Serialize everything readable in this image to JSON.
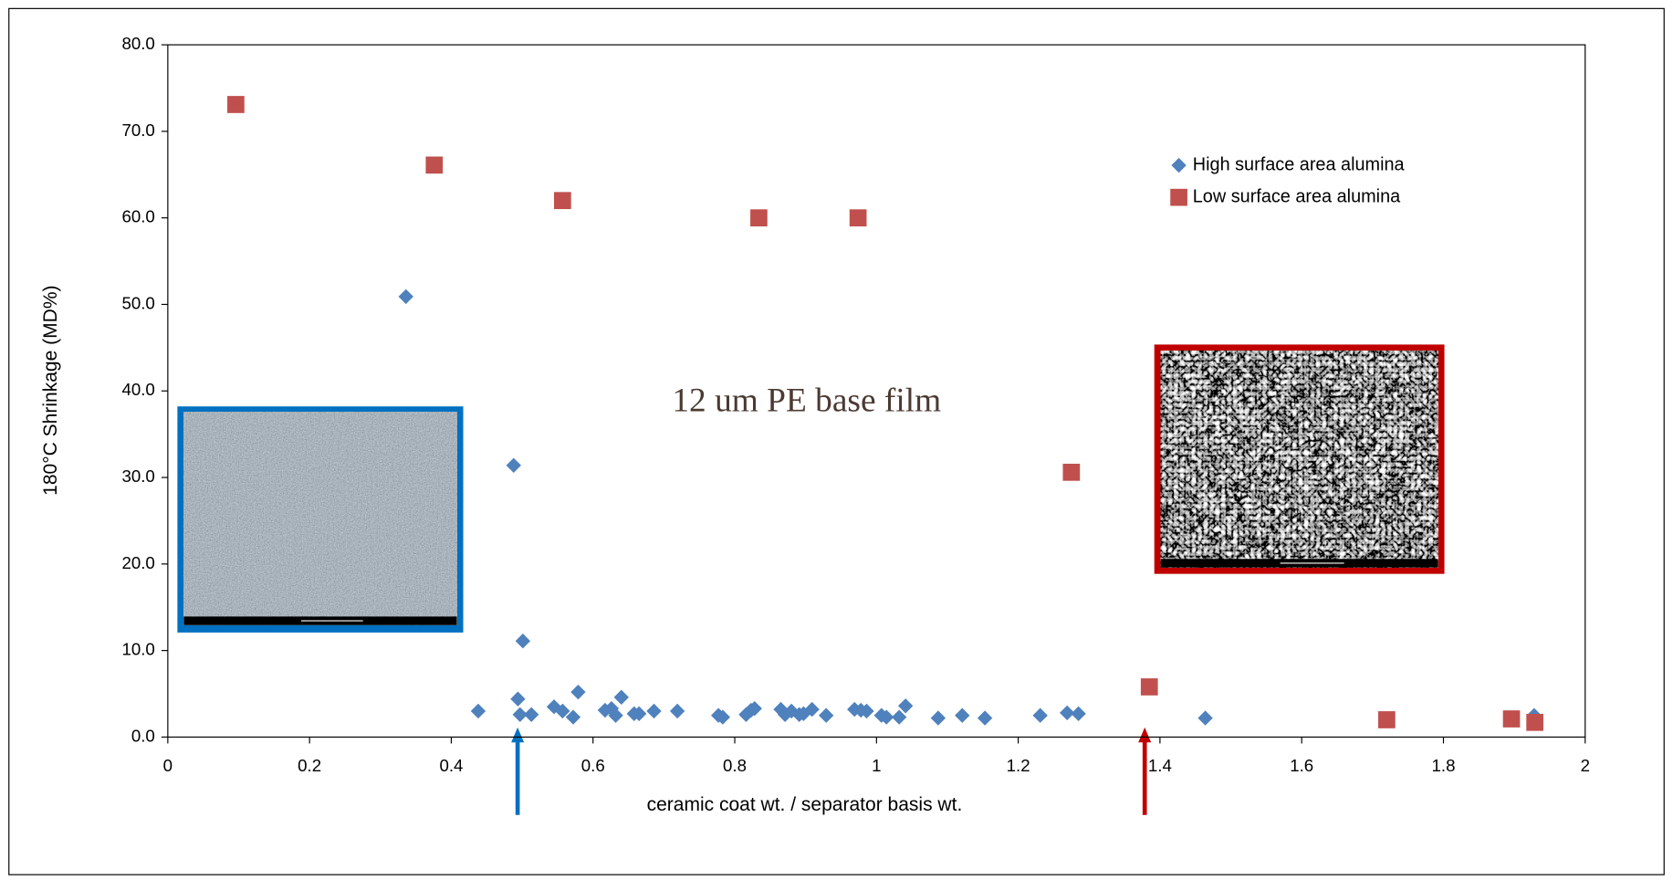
{
  "chart_data": {
    "type": "scatter",
    "x_label": "ceramic coat wt. / separator basis wt.",
    "y_label": "180°C Shrinkage (MD%)",
    "annotation": "12 um PE base film",
    "xlim": [
      0,
      2
    ],
    "xticks": [
      0,
      0.2,
      0.4,
      0.6,
      0.8,
      1,
      1.2,
      1.4,
      1.6,
      1.8,
      2
    ],
    "ylim": [
      0,
      80
    ],
    "yticks": [
      {
        "value": 0,
        "label": "0.0"
      },
      {
        "value": 10,
        "label": "10.0"
      },
      {
        "value": 20,
        "label": "20.0"
      },
      {
        "value": 30,
        "label": "30.0"
      },
      {
        "value": 40,
        "label": "40.0"
      },
      {
        "value": 50,
        "label": "50.0"
      },
      {
        "value": 60,
        "label": "60.0"
      },
      {
        "value": 70,
        "label": "70.0"
      },
      {
        "value": 80,
        "label": "80.0"
      }
    ],
    "legend": "upper right",
    "series": [
      {
        "name": "High surface area alumina",
        "color": "#4f81bd",
        "marker": "diamond",
        "x": [
          0.336,
          0.488,
          0.501,
          0.438,
          0.494,
          0.497,
          0.513,
          0.545,
          0.557,
          0.572,
          0.579,
          0.617,
          0.626,
          0.632,
          0.64,
          0.658,
          0.665,
          0.686,
          0.719,
          0.777,
          0.783,
          0.816,
          0.823,
          0.828,
          0.865,
          0.871,
          0.88,
          0.891,
          0.897,
          0.909,
          0.929,
          0.969,
          0.978,
          0.986,
          1.007,
          1.014,
          1.032,
          1.041,
          1.087,
          1.121,
          1.153,
          1.231,
          1.269,
          1.285,
          1.464,
          1.928
        ],
        "values": [
          50.9,
          31.4,
          11.1,
          3.0,
          4.4,
          2.6,
          2.6,
          3.5,
          3.0,
          2.3,
          5.2,
          3.1,
          3.3,
          2.5,
          4.6,
          2.7,
          2.7,
          3.0,
          3.0,
          2.5,
          2.3,
          2.6,
          3.1,
          3.3,
          3.2,
          2.6,
          3.0,
          2.6,
          2.7,
          3.2,
          2.5,
          3.2,
          3.1,
          3.0,
          2.5,
          2.3,
          2.3,
          3.6,
          2.2,
          2.5,
          2.2,
          2.5,
          2.8,
          2.7,
          2.2,
          2.5
        ]
      },
      {
        "name": "Low surface area alumina",
        "color": "#c0504d",
        "marker": "square",
        "x": [
          0.096,
          0.376,
          0.557,
          0.834,
          0.974,
          1.275,
          1.385,
          1.72,
          1.896,
          1.929
        ],
        "values": [
          73.1,
          66.1,
          62.0,
          60.0,
          60.0,
          30.6,
          5.8,
          2.0,
          2.1,
          1.7
        ]
      }
    ]
  }
}
